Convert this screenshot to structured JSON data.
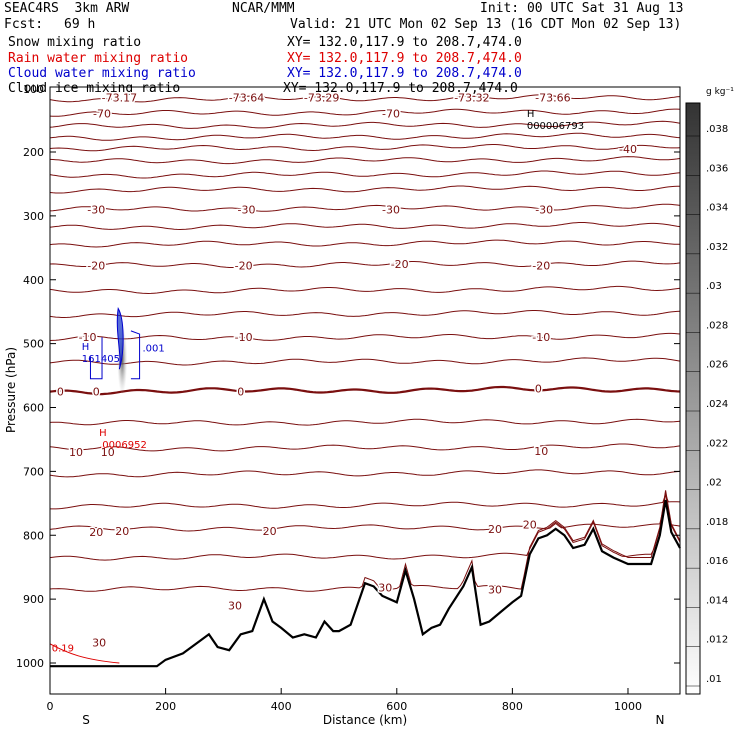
{
  "header": {
    "project": "SEAC4RS  3km ARW",
    "org": "NCAR/MMM",
    "init": "Init: 00 UTC Sat 31 Aug 13",
    "fcst_label": "Fcst:",
    "fcst_value": "69 h",
    "valid": "Valid: 21 UTC Mon 02 Sep 13 (16 CDT Mon 02 Sep 13)",
    "fields": [
      {
        "name": "Snow mixing ratio",
        "xy": "XY= 132.0,117.9 to 208.7,474.0",
        "color": "#000000"
      },
      {
        "name": "Rain water mixing ratio",
        "xy": "XY= 132.0,117.9 to 208.7,474.0",
        "color": "#dd0000"
      },
      {
        "name": "Cloud water mixing ratio",
        "xy": "XY= 132.0,117.9 to 208.7,474.0",
        "color": "#0000cc"
      },
      {
        "name": "Cloud ice mixing ratio",
        "xy": "XY= 132.0,117.9 to 208.7,474.0",
        "color": "#000000"
      }
    ]
  },
  "chart_data": {
    "type": "cross-section",
    "xlabel": "Distance (km)",
    "ylabel": "Pressure (hPa)",
    "xlim": [
      0,
      1090
    ],
    "ylim": [
      1050,
      90
    ],
    "x_ticks": [
      "0",
      "200",
      "400",
      "600",
      "800",
      "1000"
    ],
    "y_ticks": [
      "200",
      "300",
      "400",
      "500",
      "600",
      "700",
      "800",
      "900",
      "1000"
    ],
    "y_tick_values": [
      200,
      300,
      400,
      500,
      600,
      700,
      800,
      900,
      1000
    ],
    "y_top_tick": "100",
    "x_ends": {
      "left": "S",
      "right": "N"
    },
    "colorbar": {
      "unit": "g kg⁻¹",
      "labels": [
        ".038",
        ".036",
        ".034",
        ".032",
        ".03",
        ".028",
        ".026",
        ".024",
        ".022",
        ".02",
        ".018",
        ".016",
        ".014",
        ".012",
        ".01"
      ]
    },
    "terrain_pressure": [
      [
        0,
        1005
      ],
      [
        185,
        1005
      ],
      [
        200,
        995
      ],
      [
        230,
        985
      ],
      [
        260,
        965
      ],
      [
        275,
        955
      ],
      [
        290,
        975
      ],
      [
        310,
        980
      ],
      [
        330,
        955
      ],
      [
        350,
        950
      ],
      [
        370,
        900
      ],
      [
        385,
        935
      ],
      [
        400,
        945
      ],
      [
        420,
        960
      ],
      [
        440,
        955
      ],
      [
        460,
        960
      ],
      [
        475,
        935
      ],
      [
        490,
        950
      ],
      [
        500,
        950
      ],
      [
        520,
        940
      ],
      [
        545,
        875
      ],
      [
        560,
        880
      ],
      [
        575,
        895
      ],
      [
        600,
        905
      ],
      [
        615,
        855
      ],
      [
        630,
        900
      ],
      [
        645,
        955
      ],
      [
        660,
        945
      ],
      [
        675,
        940
      ],
      [
        690,
        915
      ],
      [
        715,
        880
      ],
      [
        730,
        850
      ],
      [
        745,
        940
      ],
      [
        760,
        935
      ],
      [
        780,
        920
      ],
      [
        800,
        905
      ],
      [
        815,
        895
      ],
      [
        830,
        830
      ],
      [
        845,
        805
      ],
      [
        860,
        800
      ],
      [
        875,
        790
      ],
      [
        890,
        800
      ],
      [
        905,
        820
      ],
      [
        925,
        815
      ],
      [
        940,
        790
      ],
      [
        955,
        825
      ],
      [
        975,
        835
      ],
      [
        1000,
        845
      ],
      [
        1040,
        845
      ],
      [
        1055,
        800
      ],
      [
        1065,
        745
      ],
      [
        1075,
        795
      ],
      [
        1090,
        820
      ]
    ],
    "temperature_contours": [
      {
        "label": "-73.17",
        "p": 118,
        "amp": 3
      },
      {
        "label": "-70",
        "p": 140,
        "amp": 3
      },
      {
        "label": "",
        "p": 160,
        "amp": 3
      },
      {
        "label": "",
        "p": 178,
        "amp": 3
      },
      {
        "label": "-40",
        "p": 195,
        "amp": 3
      },
      {
        "label": "",
        "p": 215,
        "amp": 3
      },
      {
        "label": "",
        "p": 237,
        "amp": 3
      },
      {
        "label": "",
        "p": 260,
        "amp": 3
      },
      {
        "label": "-30",
        "p": 290,
        "amp": 3
      },
      {
        "label": "",
        "p": 318,
        "amp": 3
      },
      {
        "label": "",
        "p": 345,
        "amp": 3
      },
      {
        "label": "-20",
        "p": 378,
        "amp": 3
      },
      {
        "label": "",
        "p": 418,
        "amp": 3
      },
      {
        "label": "",
        "p": 455,
        "amp": 3
      },
      {
        "label": "-10",
        "p": 492,
        "amp": 3
      },
      {
        "label": "",
        "p": 530,
        "amp": 3
      },
      {
        "label": "0",
        "p": 575,
        "amp": 3,
        "bold": true
      },
      {
        "label": "",
        "p": 625,
        "amp": 3
      },
      {
        "label": "10",
        "p": 665,
        "amp": 3
      },
      {
        "label": "",
        "p": 705,
        "amp": 3
      },
      {
        "label": "",
        "p": 755,
        "amp": 3
      },
      {
        "label": "20",
        "p": 790,
        "amp": 3
      },
      {
        "label": "",
        "p": 835,
        "amp": 3
      },
      {
        "label": "30",
        "p": 885,
        "amp": 3
      }
    ],
    "contour_labels": [
      {
        "text": "-73.17",
        "x": 120,
        "p": 115
      },
      {
        "text": "-73.64",
        "x": 340,
        "p": 115
      },
      {
        "text": "-73.29",
        "x": 470,
        "p": 115
      },
      {
        "text": "-73.32",
        "x": 730,
        "p": 115
      },
      {
        "text": "-73.66",
        "x": 870,
        "p": 115
      },
      {
        "text": "-70",
        "x": 90,
        "p": 140
      },
      {
        "text": "-70",
        "x": 590,
        "p": 140
      },
      {
        "text": "-40",
        "x": 1000,
        "p": 195
      },
      {
        "text": "-30",
        "x": 80,
        "p": 290
      },
      {
        "text": "-30",
        "x": 340,
        "p": 290
      },
      {
        "text": "-30",
        "x": 590,
        "p": 290
      },
      {
        "text": "-30",
        "x": 855,
        "p": 290
      },
      {
        "text": "-20",
        "x": 80,
        "p": 378
      },
      {
        "text": "-20",
        "x": 335,
        "p": 378
      },
      {
        "text": "-20",
        "x": 605,
        "p": 375
      },
      {
        "text": "-20",
        "x": 850,
        "p": 378
      },
      {
        "text": "-10",
        "x": 65,
        "p": 490
      },
      {
        "text": "-10",
        "x": 335,
        "p": 490
      },
      {
        "text": "-10",
        "x": 850,
        "p": 490
      },
      {
        "text": "0",
        "x": 18,
        "p": 575
      },
      {
        "text": "0",
        "x": 80,
        "p": 575
      },
      {
        "text": "0",
        "x": 330,
        "p": 575
      },
      {
        "text": "0",
        "x": 845,
        "p": 570
      },
      {
        "text": "10",
        "x": 45,
        "p": 670
      },
      {
        "text": "10",
        "x": 100,
        "p": 670
      },
      {
        "text": "10",
        "x": 850,
        "p": 668
      },
      {
        "text": "20",
        "x": 80,
        "p": 795
      },
      {
        "text": "20",
        "x": 125,
        "p": 793
      },
      {
        "text": "20",
        "x": 380,
        "p": 793
      },
      {
        "text": "20",
        "x": 770,
        "p": 790
      },
      {
        "text": "20",
        "x": 830,
        "p": 783
      },
      {
        "text": "30",
        "x": 85,
        "p": 968
      },
      {
        "text": "30",
        "x": 320,
        "p": 910
      },
      {
        "text": "30",
        "x": 580,
        "p": 882
      },
      {
        "text": "30",
        "x": 770,
        "p": 885
      }
    ],
    "markers": [
      {
        "text": "H",
        "sub": "000006793",
        "x": 825,
        "p": 145,
        "color": "#000000"
      },
      {
        "text": "H",
        "sub": "161405",
        "x": 55,
        "p": 510,
        "color": "#0000cc"
      },
      {
        "text": "H",
        "sub": ".0006952",
        "x": 85,
        "p": 645,
        "color": "#dd0000"
      }
    ],
    "extra_labels": [
      {
        "text": ".001",
        "x": 160,
        "p": 512,
        "color": "#0000cc"
      },
      {
        "text": "0.19",
        "x": 3,
        "p": 982,
        "color": "#dd0000"
      }
    ]
  }
}
